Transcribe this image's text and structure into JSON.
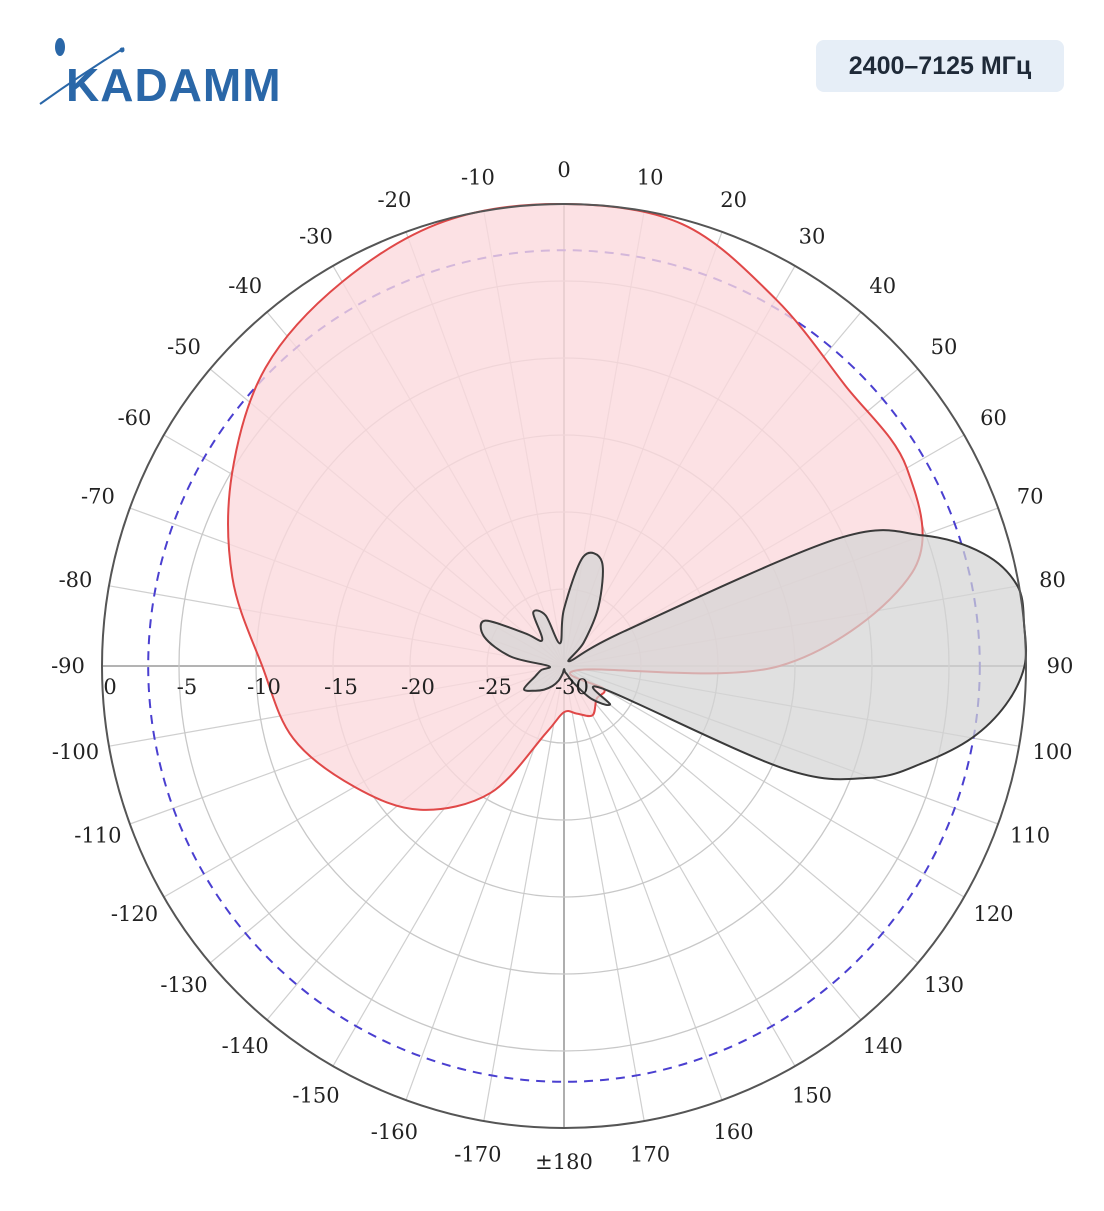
{
  "brand": {
    "logo_text": "KADAMM",
    "logo_color": "#2a67a8"
  },
  "badge": {
    "label": "2400–7125 МГц"
  },
  "chart_data": {
    "type": "polar",
    "title": "",
    "angle_unit": "deg",
    "angle_ticks": [
      "0",
      "10",
      "20",
      "30",
      "40",
      "50",
      "60",
      "70",
      "80",
      "90",
      "100",
      "110",
      "120",
      "130",
      "140",
      "150",
      "160",
      "170",
      "±180",
      "-170",
      "-160",
      "-150",
      "-140",
      "-130",
      "-120",
      "-110",
      "-100",
      "-90",
      "-80",
      "-70",
      "-60",
      "-50",
      "-40",
      "-30",
      "-20",
      "-10"
    ],
    "radial_ticks": [
      "0",
      "-5",
      "-10",
      "-15",
      "-20",
      "-25",
      "-30"
    ],
    "radial_range": [
      -30,
      0
    ],
    "reference_level_db": -3,
    "reference_color": "#4a3fd0",
    "grid": true,
    "series": [
      {
        "color": "#e04848",
        "fill": "#fbd9dc",
        "angles": [
          0,
          15,
          30,
          45,
          60,
          75,
          90,
          105,
          120,
          135,
          150,
          165,
          180,
          -165,
          -150,
          -135,
          -120,
          -105,
          -90,
          -75,
          -60,
          -45,
          -30,
          -15
        ],
        "gain_db": [
          0,
          -0.3,
          -2.5,
          -4.2,
          -4.3,
          -6.6,
          -16,
          -29,
          -27,
          -27,
          -26.3,
          -26.8,
          -27,
          -25.5,
          -20.5,
          -16.8,
          -14.3,
          -11.8,
          -10.4,
          -7.7,
          -5.1,
          -2.6,
          -1.2,
          -0.1
        ]
      },
      {
        "color": "#3a3a3a",
        "fill": "#d4d4d4",
        "angles": [
          0,
          10,
          20,
          30,
          40,
          50,
          60,
          65,
          70,
          75,
          80,
          85,
          90,
          95,
          100,
          105,
          110,
          115,
          120,
          130,
          140,
          150,
          160,
          170,
          180,
          -170,
          -160,
          -150,
          -140,
          -130,
          -120,
          -110,
          -100,
          -90,
          -80,
          -70,
          -60,
          -50,
          -40,
          -30,
          -20,
          -10
        ],
        "gain_db": [
          -26.3,
          -22.8,
          -22.8,
          -25.5,
          -28,
          -29.5,
          -25.5,
          -10.5,
          -5.2,
          -1.8,
          -0.1,
          0,
          -0.1,
          -1.2,
          -3.1,
          -5.8,
          -8.8,
          -14.2,
          -27,
          -26.1,
          -27.2,
          -28.7,
          -29.4,
          -29.6,
          -29.8,
          -29.5,
          -29,
          -28.5,
          -28,
          -27.5,
          -27,
          -28,
          -28.5,
          -29,
          -26.5,
          -24.5,
          -24.1,
          -26.7,
          -27.8,
          -26,
          -26.5,
          -28.5
        ]
      }
    ]
  }
}
